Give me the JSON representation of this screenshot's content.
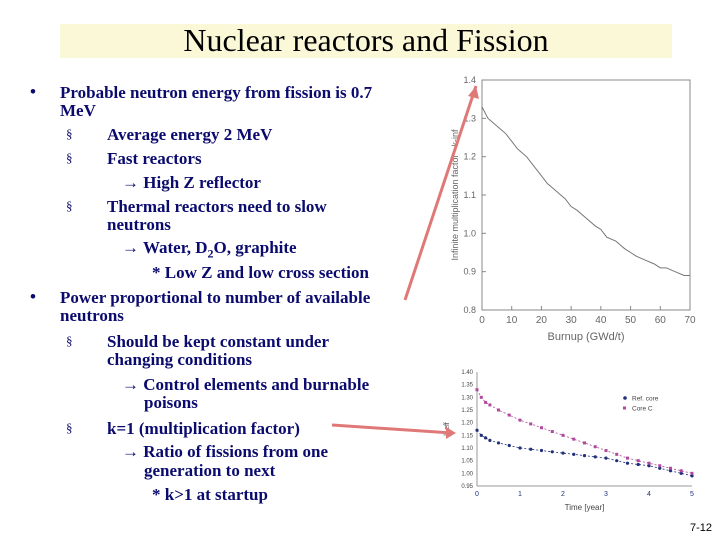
{
  "slide": {
    "title": "Nuclear reactors and Fission",
    "page_number": "7-12"
  },
  "bullets": [
    {
      "line1": "Probable neutron energy from fission is 0.7",
      "line2": "MeV"
    },
    {
      "line1": "Power proportional to number of available",
      "line2": "neutrons"
    }
  ],
  "sub_items": {
    "avg_energy": "Average energy 2 MeV",
    "fast": "Fast reactors",
    "fast_arrow": "High Z reflector",
    "thermal_1": "Thermal reactors need to slow",
    "thermal_2": "neutrons",
    "thermal_arrow": "Water, D",
    "thermal_arrow_sub": "2",
    "thermal_arrow_rest": "O, graphite",
    "thermal_star": "* Low Z and low cross section",
    "constant_1": "Should be kept constant under",
    "constant_2": "changing conditions",
    "constant_arrow_1": "Control elements and burnable",
    "constant_arrow_2": "poisons",
    "k_item": "k=1 (multiplication factor)",
    "k_arrow_1": "Ratio of fissions from one",
    "k_arrow_2": "generation to next",
    "k_star": "* k>1 at startup"
  },
  "chart_data": [
    {
      "type": "line",
      "xlabel": "Burnup (GWd/t)",
      "ylabel": "Infinite multiplication factor - k-inf",
      "xlim": [
        0,
        70
      ],
      "ylim": [
        0.8,
        1.4
      ],
      "x_ticks": [
        "0",
        "10",
        "20",
        "30",
        "40",
        "50",
        "60",
        "70"
      ],
      "y_ticks": [
        "0.8",
        "0.9",
        "1.0",
        "1.1",
        "1.2",
        "1.3",
        "1.4"
      ],
      "series": [
        {
          "x": [
            0,
            2,
            5,
            8,
            10,
            12,
            15,
            18,
            20,
            22,
            25,
            28,
            30,
            32,
            35,
            38,
            40,
            42,
            45,
            48,
            50,
            52,
            55,
            58,
            60,
            62,
            65,
            68,
            70
          ],
          "y": [
            1.33,
            1.3,
            1.28,
            1.26,
            1.24,
            1.22,
            1.2,
            1.17,
            1.15,
            1.13,
            1.11,
            1.09,
            1.07,
            1.06,
            1.04,
            1.02,
            1.01,
            0.99,
            0.98,
            0.96,
            0.95,
            0.94,
            0.93,
            0.92,
            0.91,
            0.91,
            0.9,
            0.89,
            0.89
          ]
        }
      ]
    },
    {
      "type": "line",
      "xlabel": "Time [year]",
      "ylabel": "k-eff",
      "xlim": [
        0,
        5
      ],
      "ylim": [
        0.95,
        1.4
      ],
      "x_ticks": [
        "0",
        "1",
        "2",
        "3",
        "4",
        "5"
      ],
      "y_ticks": [
        "0.95",
        "1.00",
        "1.05",
        "1.10",
        "1.15",
        "1.20",
        "1.25",
        "1.30",
        "1.35",
        "1.40"
      ],
      "legend_position": "top-right",
      "series": [
        {
          "name": "Ref. core",
          "color": "#1f2f7a",
          "x": [
            0,
            0.1,
            0.2,
            0.3,
            0.5,
            0.75,
            1,
            1.25,
            1.5,
            1.75,
            2,
            2.25,
            2.5,
            2.75,
            3,
            3.25,
            3.5,
            3.75,
            4,
            4.25,
            4.5,
            4.75,
            5
          ],
          "y": [
            1.17,
            1.15,
            1.14,
            1.13,
            1.12,
            1.11,
            1.1,
            1.095,
            1.09,
            1.085,
            1.08,
            1.075,
            1.07,
            1.065,
            1.06,
            1.05,
            1.04,
            1.035,
            1.03,
            1.02,
            1.01,
            1.0,
            0.99
          ]
        },
        {
          "name": "Core C",
          "color": "#b04a9c",
          "x": [
            0,
            0.1,
            0.2,
            0.3,
            0.5,
            0.75,
            1,
            1.25,
            1.5,
            1.75,
            2,
            2.25,
            2.5,
            2.75,
            3,
            3.25,
            3.5,
            3.75,
            4,
            4.25,
            4.5,
            4.75,
            5
          ],
          "y": [
            1.33,
            1.3,
            1.28,
            1.27,
            1.25,
            1.23,
            1.21,
            1.195,
            1.18,
            1.165,
            1.15,
            1.135,
            1.12,
            1.105,
            1.09,
            1.075,
            1.06,
            1.05,
            1.04,
            1.03,
            1.02,
            1.01,
            1.0
          ]
        }
      ]
    }
  ]
}
